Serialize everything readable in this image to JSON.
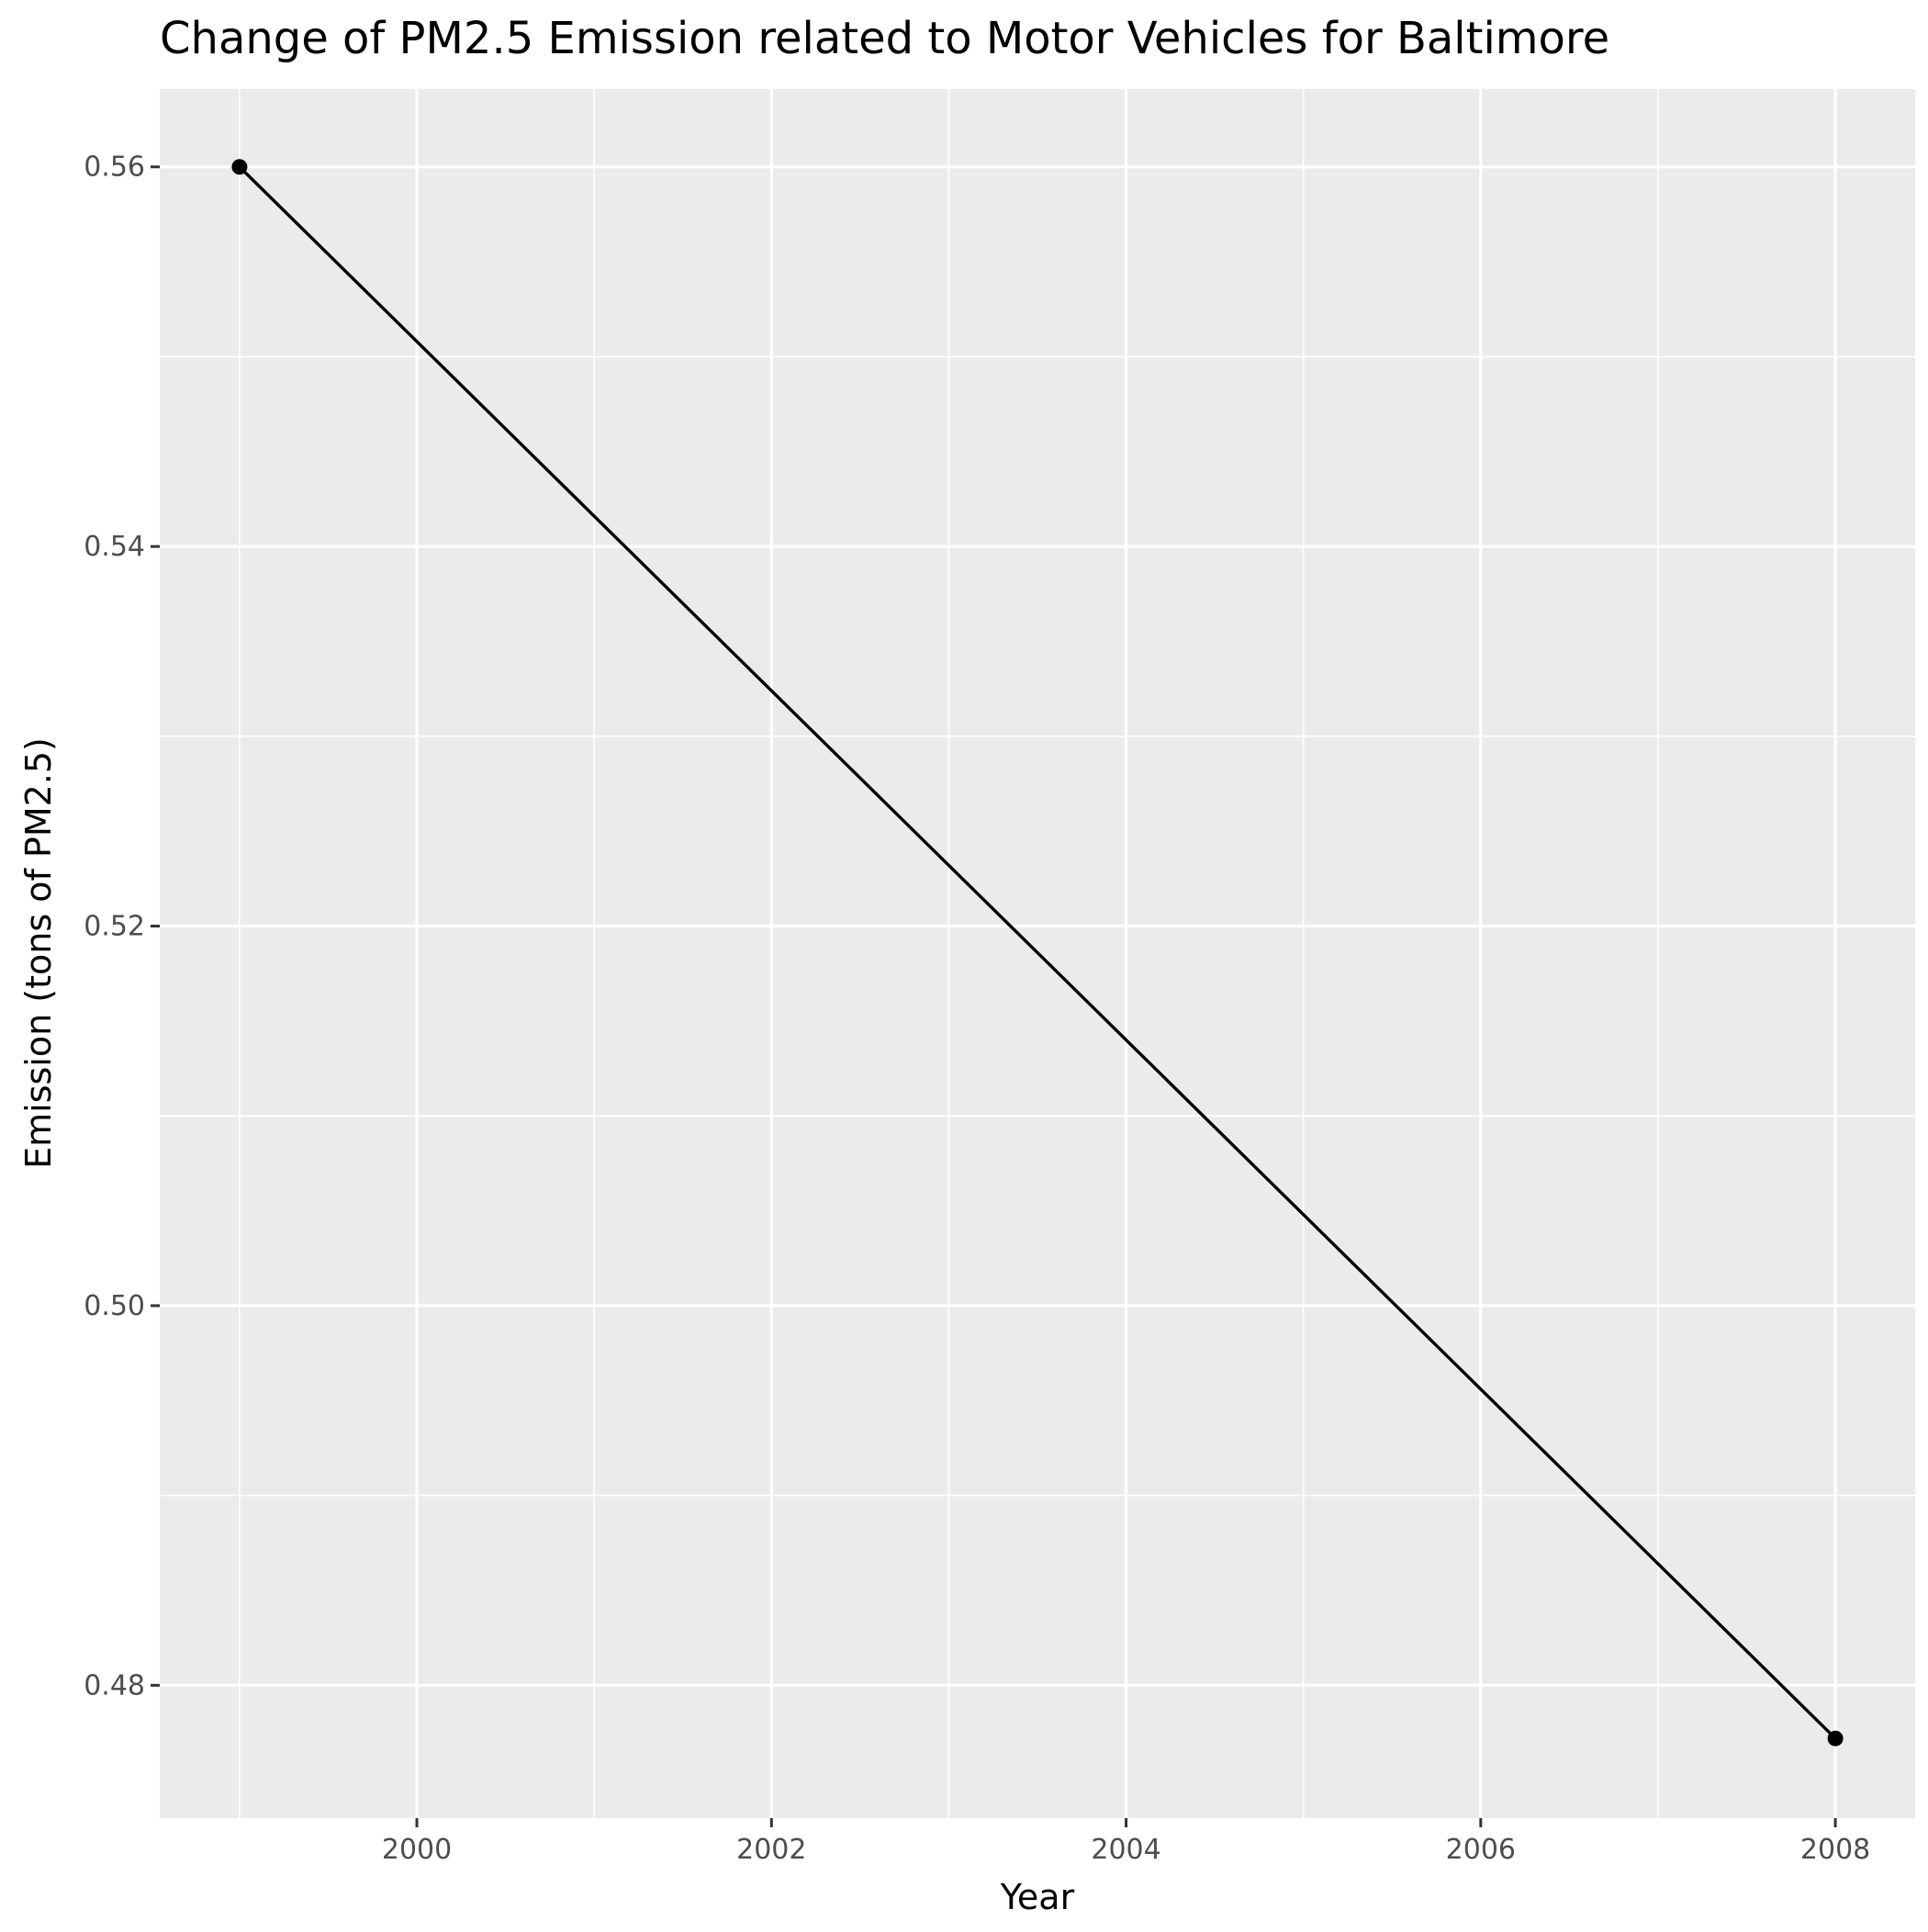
{
  "chart_data": {
    "type": "line",
    "title": "Change of PM2.5 Emission related to Motor Vehicles for Baltimore",
    "xlabel": "Year",
    "ylabel": "Emission (tons of PM2.5)",
    "x": [
      1999,
      2008
    ],
    "series": [
      {
        "values": [
          0.56,
          0.4772
        ]
      }
    ],
    "xlim": [
      1998.55,
      2008.45
    ],
    "ylim": [
      0.473,
      0.5641
    ],
    "x_ticks": [
      2000,
      2002,
      2004,
      2006,
      2008
    ],
    "x_tick_labels": [
      "2000",
      "2002",
      "2004",
      "2006",
      "2008"
    ],
    "y_ticks": [
      0.48,
      0.5,
      0.52,
      0.54,
      0.56
    ],
    "y_tick_labels": [
      "0.48",
      "0.50",
      "0.52",
      "0.54",
      "0.56"
    ],
    "x_minor_ticks": [
      1999,
      2001,
      2003,
      2005,
      2007
    ],
    "y_minor_ticks": [
      0.49,
      0.51,
      0.53,
      0.55
    ],
    "grid": true,
    "legend": "none",
    "colors": {
      "panel_background": "#ebebeb",
      "grid": "#ffffff",
      "series": "#000000",
      "tick_text": "#4d4d4d",
      "title_text": "#000000"
    }
  }
}
